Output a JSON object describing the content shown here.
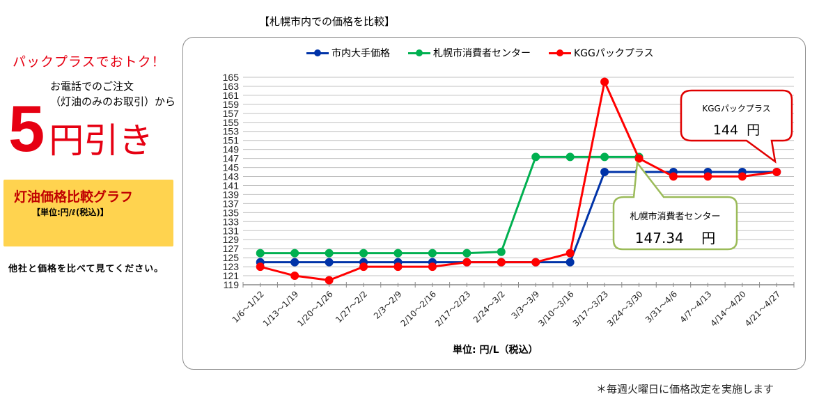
{
  "promo": {
    "headline": "パックプラスでおトク！",
    "line1": "お電話でのご注文",
    "line2": "（灯油のみのお取引）から",
    "discount_number": "5",
    "discount_text": "円引き"
  },
  "graph_box": {
    "title": "灯油価格比較グラフ",
    "unit": "【単位:円/ℓ(税込)】"
  },
  "compare_text": "他社と価格を比べて見てください。",
  "footnote": "＊毎週火曜日に価格改定を実施します",
  "colors": {
    "blue": "#0033a8",
    "green": "#00b050",
    "red": "#ff0000",
    "callout_red": "#e00000",
    "callout_green": "#9bbb59",
    "box_yellow": "#ffd34f"
  },
  "chart_data": {
    "type": "line",
    "title": "【札幌市内での価格を比較】",
    "xlabel": "単位: 円/L（税込）",
    "ylabel": "",
    "ylim": [
      119,
      165
    ],
    "yticks": [
      119,
      121,
      123,
      125,
      127,
      129,
      131,
      133,
      135,
      137,
      139,
      141,
      143,
      145,
      147,
      149,
      151,
      153,
      155,
      157,
      159,
      161,
      163,
      165
    ],
    "grid": true,
    "legend_position": "top",
    "categories": [
      "1/6～1/12",
      "1/13～1/19",
      "1/20～1/26",
      "1/27～2/2",
      "2/3～2/9",
      "2/10～2/16",
      "2/17～2/23",
      "2/24～3/2",
      "3/3～3/9",
      "3/10～3/16",
      "3/17～3/23",
      "3/24～3/30",
      "3/31～4/6",
      "4/7～4/13",
      "4/14～4/20",
      "4/21～4/27"
    ],
    "series": [
      {
        "name": "市内大手価格",
        "color": "#0033a8",
        "values": [
          124,
          124,
          124,
          124,
          124,
          124,
          124,
          124,
          124,
          124,
          144,
          144,
          144,
          144,
          144,
          144
        ]
      },
      {
        "name": "札幌市消費者センター",
        "color": "#00b050",
        "values": [
          126,
          126,
          126,
          126,
          126,
          126,
          126,
          126.3,
          147.34,
          147.34,
          147.34,
          147.34,
          null,
          null,
          null,
          null
        ]
      },
      {
        "name": "KGGパックプラス",
        "color": "#ff0000",
        "values": [
          123,
          121,
          120,
          123,
          123,
          123,
          124,
          124,
          124,
          126,
          164,
          147,
          143,
          143,
          143,
          144
        ]
      }
    ],
    "annotations": [
      {
        "series": "KGGパックプラス",
        "label": "KGGパックプラス",
        "value": "144",
        "unit": "円"
      },
      {
        "series": "札幌市消費者センター",
        "label": "札幌市消費者センター",
        "value": "147.34",
        "unit": "円"
      }
    ]
  }
}
